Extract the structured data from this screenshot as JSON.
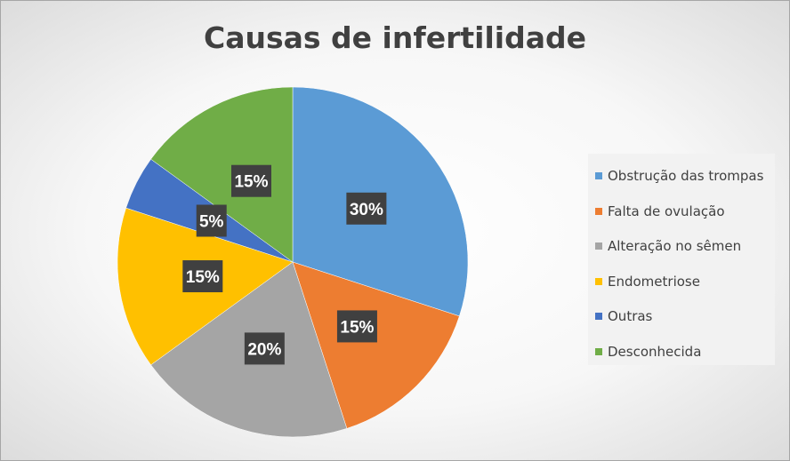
{
  "chart_data": {
    "type": "pie",
    "title": "Causas de infertilidade",
    "categories": [
      "Obstrução das trompas",
      "Falta de ovulação",
      "Alteração no sêmen",
      "Endometriose",
      "Outras",
      "Desconhecida"
    ],
    "values": [
      30,
      15,
      20,
      15,
      5,
      15
    ],
    "data_labels": [
      "30%",
      "15%",
      "20%",
      "15%",
      "5%",
      "15%"
    ],
    "colors": [
      "#5b9bd5",
      "#ed7d31",
      "#a5a5a5",
      "#ffc000",
      "#4472c4",
      "#70ad47"
    ],
    "legend_position": "right"
  }
}
